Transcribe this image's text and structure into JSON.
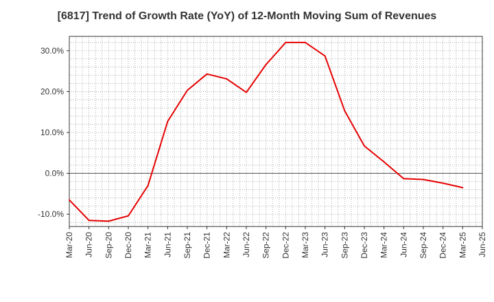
{
  "chart_data": {
    "type": "line",
    "title": "[6817]  Trend of Growth Rate (YoY) of 12-Month Moving Sum of Revenues",
    "xlabel": "",
    "ylabel": "",
    "x_ticks": [
      "Mar-20",
      "Jun-20",
      "Sep-20",
      "Dec-20",
      "Mar-21",
      "Jun-21",
      "Sep-21",
      "Dec-21",
      "Mar-22",
      "Jun-22",
      "Sep-22",
      "Dec-22",
      "Mar-23",
      "Jun-23",
      "Sep-23",
      "Dec-23",
      "Mar-24",
      "Jun-24",
      "Sep-24",
      "Dec-24",
      "Mar-25",
      "Jun-25"
    ],
    "y_ticks": [
      30,
      20,
      10,
      0,
      -10
    ],
    "y_tick_labels": [
      "30.0%",
      "20.0%",
      "10.0%",
      "0.0%",
      "-10.0%"
    ],
    "ylim": [
      -13,
      33.5
    ],
    "grid": true,
    "line_color": "#e60000",
    "series": [
      {
        "x": [
          "Mar-20",
          "Jun-20",
          "Sep-20",
          "Dec-20",
          "Mar-21",
          "Jun-21",
          "Sep-21",
          "Dec-21",
          "Mar-22",
          "Jun-22",
          "Sep-22",
          "Dec-22",
          "Mar-23",
          "Jun-23",
          "Sep-23",
          "Dec-23",
          "Mar-24",
          "Jun-24",
          "Sep-24",
          "Dec-24",
          "Mar-25"
        ],
        "values": [
          -6.5,
          -11.5,
          -11.7,
          -10.4,
          -3.0,
          12.7,
          20.3,
          24.3,
          23.1,
          19.8,
          26.6,
          32.0,
          32.0,
          28.7,
          15.3,
          6.7,
          2.8,
          -1.3,
          -1.5,
          -2.4,
          -3.5
        ]
      }
    ]
  }
}
